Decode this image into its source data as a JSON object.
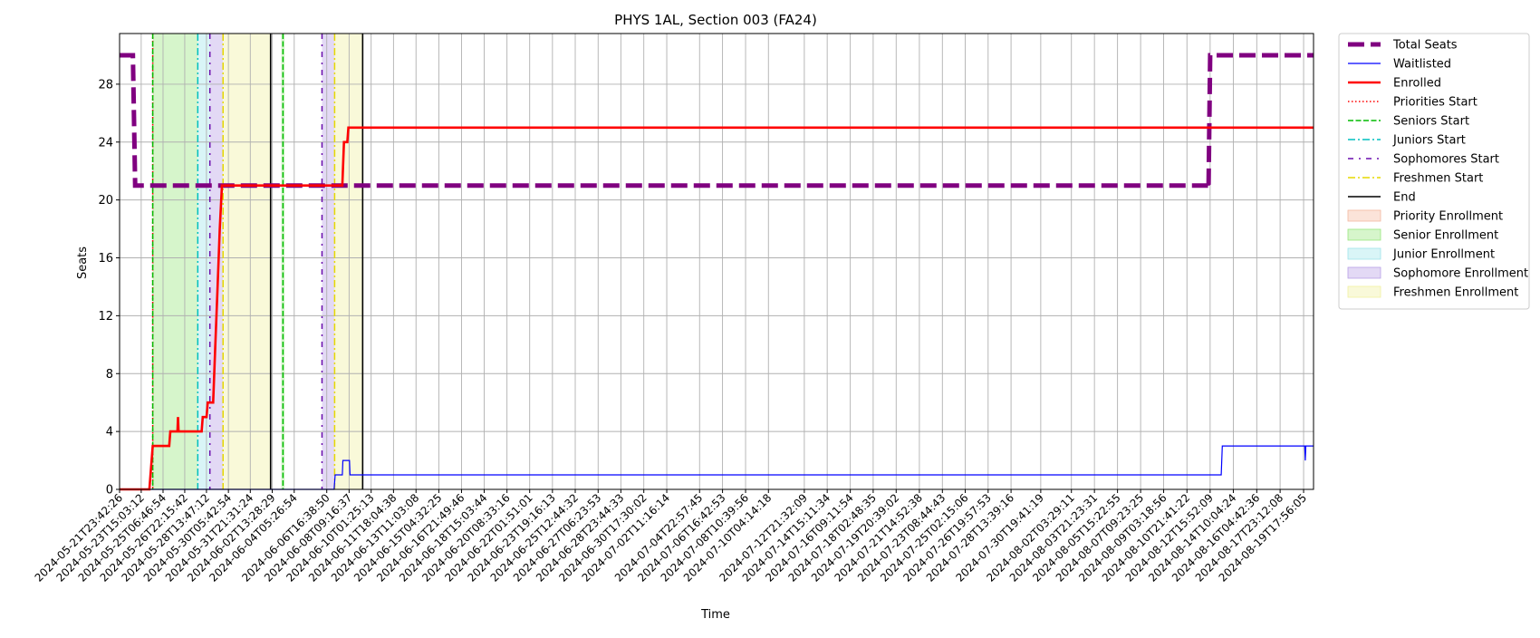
{
  "chart_data": {
    "type": "line",
    "title": "PHYS 1AL, Section 003 (FA24)",
    "xlabel": "Time",
    "ylabel": "Seats",
    "ylim": [
      0,
      31.5
    ],
    "yticks": [
      0,
      4,
      8,
      12,
      16,
      20,
      24,
      28
    ],
    "grid": true,
    "legend_position": "outside-right",
    "x_range": [
      "2024-05-21T23:42:26",
      "2024-08-20T12:00:00"
    ],
    "xticks": [
      "2024-05-21T23:42:26",
      "2024-05-23T15:03:12",
      "2024-05-25T06:46:54",
      "2024-05-26T22:15:42",
      "2024-05-28T13:47:12",
      "2024-05-30T05:42:54",
      "2024-05-31T21:31:24",
      "2024-06-02T13:28:29",
      "2024-06-04T05:26:54",
      "2024-06-06T16:38:50",
      "2024-06-08T09:16:37",
      "2024-06-10T01:25:13",
      "2024-06-11T18:04:38",
      "2024-06-13T11:03:08",
      "2024-06-15T04:32:25",
      "2024-06-16T21:49:46",
      "2024-06-18T15:03:44",
      "2024-06-20T08:33:16",
      "2024-06-22T01:51:01",
      "2024-06-23T19:16:13",
      "2024-06-25T12:44:32",
      "2024-06-27T06:23:53",
      "2024-06-28T23:44:33",
      "2024-06-30T17:30:02",
      "2024-07-02T11:16:14",
      "2024-07-04T22:57:45",
      "2024-07-06T16:42:53",
      "2024-07-08T10:39:56",
      "2024-07-10T04:14:18",
      "2024-07-12T21:32:09",
      "2024-07-14T15:11:34",
      "2024-07-16T09:11:54",
      "2024-07-18T02:48:35",
      "2024-07-19T20:39:02",
      "2024-07-21T14:52:38",
      "2024-07-23T08:44:43",
      "2024-07-25T02:15:06",
      "2024-07-26T19:57:53",
      "2024-07-28T13:39:16",
      "2024-07-30T19:41:19",
      "2024-08-02T03:29:11",
      "2024-08-03T21:23:31",
      "2024-08-05T15:22:55",
      "2024-08-07T09:23:25",
      "2024-08-09T03:18:56",
      "2024-08-10T21:41:22",
      "2024-08-12T15:52:09",
      "2024-08-14T10:04:24",
      "2024-08-16T04:42:36",
      "2024-08-17T23:12:08",
      "2024-08-19T17:56:05"
    ],
    "series": [
      {
        "name": "Total Seats",
        "color": "#800080",
        "style": "dashed-thick",
        "points": [
          [
            "2024-05-21T23:42:26",
            30
          ],
          [
            "2024-05-23T00:00:00",
            30
          ],
          [
            "2024-05-23T04:00:00",
            21
          ],
          [
            "2024-08-12T12:00:00",
            21
          ],
          [
            "2024-08-12T13:00:00",
            20.8
          ],
          [
            "2024-08-12T15:52:09",
            30
          ],
          [
            "2024-08-20T12:00:00",
            30
          ]
        ]
      },
      {
        "name": "Waitlisted",
        "color": "#0000ff",
        "style": "solid-thin",
        "points": [
          [
            "2024-05-21T23:42:26",
            0
          ],
          [
            "2024-06-07T06:00:00",
            0
          ],
          [
            "2024-06-07T08:00:00",
            1
          ],
          [
            "2024-06-07T21:00:00",
            1
          ],
          [
            "2024-06-07T22:00:00",
            2
          ],
          [
            "2024-06-08T10:00:00",
            2
          ],
          [
            "2024-06-08T11:00:00",
            1
          ],
          [
            "2024-08-13T12:00:00",
            1
          ],
          [
            "2024-08-13T14:00:00",
            3
          ],
          [
            "2024-08-19T20:00:00",
            3
          ],
          [
            "2024-08-19T21:00:00",
            2
          ],
          [
            "2024-08-19T22:00:00",
            3
          ],
          [
            "2024-08-20T12:00:00",
            3
          ]
        ]
      },
      {
        "name": "Enrolled",
        "color": "#ff0000",
        "style": "solid-thick",
        "points": [
          [
            "2024-05-21T23:42:26",
            0
          ],
          [
            "2024-05-24T06:00:00",
            0
          ],
          [
            "2024-05-24T12:00:00",
            3
          ],
          [
            "2024-05-25T18:00:00",
            3
          ],
          [
            "2024-05-25T20:00:00",
            4
          ],
          [
            "2024-05-26T09:00:00",
            4
          ],
          [
            "2024-05-26T10:00:00",
            5
          ],
          [
            "2024-05-26T11:00:00",
            4
          ],
          [
            "2024-05-28T05:00:00",
            4
          ],
          [
            "2024-05-28T07:00:00",
            5
          ],
          [
            "2024-05-28T14:00:00",
            5
          ],
          [
            "2024-05-28T16:00:00",
            6
          ],
          [
            "2024-05-29T02:00:00",
            6
          ],
          [
            "2024-05-29T06:00:00",
            10
          ],
          [
            "2024-05-29T10:00:00",
            14
          ],
          [
            "2024-05-29T14:00:00",
            18
          ],
          [
            "2024-05-29T18:00:00",
            21
          ],
          [
            "2024-06-07T21:00:00",
            21
          ],
          [
            "2024-06-08T00:00:00",
            24
          ],
          [
            "2024-06-08T06:00:00",
            24
          ],
          [
            "2024-06-08T08:00:00",
            25
          ],
          [
            "2024-08-20T12:00:00",
            25
          ]
        ]
      }
    ],
    "vertical_lines": [
      {
        "name": "Priorities Start",
        "time": "2024-05-24T12:00:00",
        "color": "#ff0000",
        "style": "dotted"
      },
      {
        "name": "Seniors Start",
        "time": "2024-05-24T12:00:00",
        "color": "#00bb00",
        "style": "dashed"
      },
      {
        "name": "Seniors Start",
        "time": "2024-06-03T09:00:00",
        "color": "#00bb00",
        "style": "dashed"
      },
      {
        "name": "Juniors Start",
        "time": "2024-05-27T22:00:00",
        "color": "#00bfbf",
        "style": "dashdot"
      },
      {
        "name": "Sophomores Start",
        "time": "2024-05-28T20:00:00",
        "color": "#6a0dad",
        "style": "dashdot-sparse"
      },
      {
        "name": "Sophomores Start",
        "time": "2024-06-06T08:00:00",
        "color": "#6a0dad",
        "style": "dashdot-sparse"
      },
      {
        "name": "Freshmen Start",
        "time": "2024-05-29T20:00:00",
        "color": "#e5d800",
        "style": "dashdot"
      },
      {
        "name": "Freshmen Start",
        "time": "2024-06-07T07:00:00",
        "color": "#e5d800",
        "style": "dashdot"
      },
      {
        "name": "End",
        "time": "2024-06-02T10:30:00",
        "color": "#000000",
        "style": "solid"
      },
      {
        "name": "End",
        "time": "2024-06-09T10:00:00",
        "color": "#000000",
        "style": "solid"
      }
    ],
    "regions": [
      {
        "name": "Priority Enrollment",
        "from": "2024-05-24T12:00:00",
        "to": "2024-05-24T12:30:00",
        "color": "#f4b8a0"
      },
      {
        "name": "Senior Enrollment",
        "from": "2024-05-24T12:30:00",
        "to": "2024-05-27T22:00:00",
        "color": "#98e67e"
      },
      {
        "name": "Senior Enrollment",
        "from": "2024-06-03T06:00:00",
        "to": "2024-06-03T12:00:00",
        "color": "#98e67e"
      },
      {
        "name": "Junior Enrollment",
        "from": "2024-05-27T22:00:00",
        "to": "2024-05-28T20:00:00",
        "color": "#9fe5ea"
      },
      {
        "name": "Sophomore Enrollment",
        "from": "2024-05-28T20:00:00",
        "to": "2024-05-29T20:00:00",
        "color": "#b8a0e6"
      },
      {
        "name": "Sophomore Enrollment",
        "from": "2024-06-06T08:00:00",
        "to": "2024-06-07T07:00:00",
        "color": "#b8a0e6"
      },
      {
        "name": "Freshmen Enrollment",
        "from": "2024-05-29T20:00:00",
        "to": "2024-06-02T10:30:00",
        "color": "#f0f0a0"
      },
      {
        "name": "Freshmen Enrollment",
        "from": "2024-06-07T07:00:00",
        "to": "2024-06-09T10:00:00",
        "color": "#f0f0a0"
      }
    ],
    "legend": [
      {
        "label": "Total Seats",
        "kind": "line",
        "color": "#800080",
        "style": "dashed-thick"
      },
      {
        "label": "Waitlisted",
        "kind": "line",
        "color": "#0000ff",
        "style": "solid-thin"
      },
      {
        "label": "Enrolled",
        "kind": "line",
        "color": "#ff0000",
        "style": "solid-thick"
      },
      {
        "label": "Priorities Start",
        "kind": "line",
        "color": "#ff0000",
        "style": "dotted"
      },
      {
        "label": "Seniors Start",
        "kind": "line",
        "color": "#00bb00",
        "style": "dashed"
      },
      {
        "label": "Juniors Start",
        "kind": "line",
        "color": "#00bfbf",
        "style": "dashdot"
      },
      {
        "label": "Sophomores Start",
        "kind": "line",
        "color": "#6a0dad",
        "style": "dashdot-sparse"
      },
      {
        "label": "Freshmen Start",
        "kind": "line",
        "color": "#e5d800",
        "style": "dashdot"
      },
      {
        "label": "End",
        "kind": "line",
        "color": "#000000",
        "style": "solid"
      },
      {
        "label": "Priority Enrollment",
        "kind": "patch",
        "color": "#f4b8a0"
      },
      {
        "label": "Senior Enrollment",
        "kind": "patch",
        "color": "#98e67e"
      },
      {
        "label": "Junior Enrollment",
        "kind": "patch",
        "color": "#9fe5ea"
      },
      {
        "label": "Sophomore Enrollment",
        "kind": "patch",
        "color": "#b8a0e6"
      },
      {
        "label": "Freshmen Enrollment",
        "kind": "patch",
        "color": "#f0f0a0"
      }
    ]
  }
}
